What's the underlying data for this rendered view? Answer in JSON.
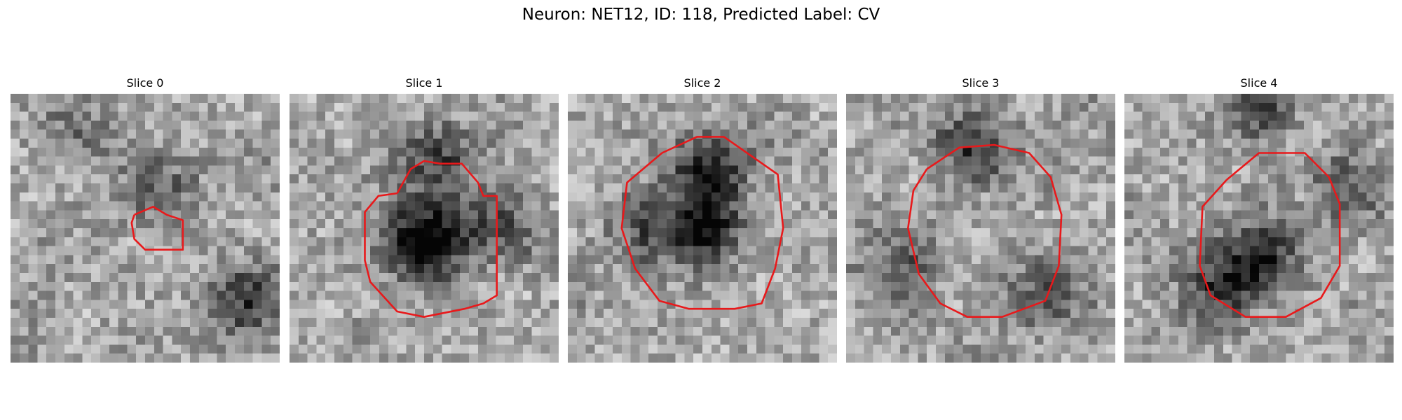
{
  "figure": {
    "title": "Neuron: NET12, ID: 118, Predicted Label: CV"
  },
  "contour_color": "#e8191b",
  "panels": [
    {
      "title": "Slice 0",
      "seed": 11,
      "dark_spots": [
        [
          0.55,
          0.35,
          0.28
        ],
        [
          0.88,
          0.78,
          0.45
        ],
        [
          0.25,
          0.12,
          0.2
        ]
      ],
      "contour": [
        [
          0.46,
          0.45
        ],
        [
          0.53,
          0.42
        ],
        [
          0.58,
          0.45
        ],
        [
          0.64,
          0.47
        ],
        [
          0.64,
          0.58
        ],
        [
          0.62,
          0.58
        ],
        [
          0.5,
          0.58
        ],
        [
          0.46,
          0.54
        ],
        [
          0.45,
          0.48
        ]
      ]
    },
    {
      "title": "Slice 1",
      "seed": 23,
      "dark_spots": [
        [
          0.5,
          0.55,
          0.85
        ],
        [
          0.55,
          0.25,
          0.4
        ],
        [
          0.78,
          0.5,
          0.3
        ]
      ],
      "contour": [
        [
          0.4,
          0.37
        ],
        [
          0.45,
          0.28
        ],
        [
          0.5,
          0.25
        ],
        [
          0.56,
          0.26
        ],
        [
          0.64,
          0.26
        ],
        [
          0.7,
          0.33
        ],
        [
          0.72,
          0.38
        ],
        [
          0.77,
          0.38
        ],
        [
          0.77,
          0.75
        ],
        [
          0.72,
          0.78
        ],
        [
          0.65,
          0.8
        ],
        [
          0.5,
          0.83
        ],
        [
          0.4,
          0.81
        ],
        [
          0.3,
          0.7
        ],
        [
          0.28,
          0.62
        ],
        [
          0.28,
          0.44
        ],
        [
          0.33,
          0.38
        ]
      ]
    },
    {
      "title": "Slice 2",
      "seed": 37,
      "dark_spots": [
        [
          0.5,
          0.5,
          0.55
        ],
        [
          0.52,
          0.28,
          0.5
        ],
        [
          0.3,
          0.5,
          0.35
        ]
      ],
      "contour": [
        [
          0.35,
          0.22
        ],
        [
          0.48,
          0.16
        ],
        [
          0.58,
          0.16
        ],
        [
          0.68,
          0.23
        ],
        [
          0.78,
          0.3
        ],
        [
          0.8,
          0.5
        ],
        [
          0.77,
          0.65
        ],
        [
          0.72,
          0.78
        ],
        [
          0.62,
          0.8
        ],
        [
          0.45,
          0.8
        ],
        [
          0.34,
          0.77
        ],
        [
          0.25,
          0.65
        ],
        [
          0.2,
          0.5
        ],
        [
          0.22,
          0.33
        ]
      ]
    },
    {
      "title": "Slice 3",
      "seed": 49,
      "dark_spots": [
        [
          0.48,
          0.2,
          0.45
        ],
        [
          0.2,
          0.65,
          0.35
        ],
        [
          0.75,
          0.75,
          0.3
        ]
      ],
      "contour": [
        [
          0.3,
          0.28
        ],
        [
          0.42,
          0.2
        ],
        [
          0.55,
          0.19
        ],
        [
          0.68,
          0.22
        ],
        [
          0.76,
          0.31
        ],
        [
          0.8,
          0.45
        ],
        [
          0.79,
          0.64
        ],
        [
          0.74,
          0.77
        ],
        [
          0.58,
          0.83
        ],
        [
          0.45,
          0.83
        ],
        [
          0.35,
          0.78
        ],
        [
          0.27,
          0.67
        ],
        [
          0.23,
          0.5
        ],
        [
          0.25,
          0.36
        ]
      ]
    },
    {
      "title": "Slice 4",
      "seed": 61,
      "dark_spots": [
        [
          0.52,
          0.6,
          0.5
        ],
        [
          0.35,
          0.72,
          0.45
        ],
        [
          0.5,
          0.05,
          0.4
        ],
        [
          0.82,
          0.35,
          0.3
        ]
      ],
      "contour": [
        [
          0.38,
          0.32
        ],
        [
          0.5,
          0.22
        ],
        [
          0.67,
          0.22
        ],
        [
          0.76,
          0.31
        ],
        [
          0.8,
          0.41
        ],
        [
          0.8,
          0.64
        ],
        [
          0.73,
          0.76
        ],
        [
          0.6,
          0.83
        ],
        [
          0.45,
          0.83
        ],
        [
          0.32,
          0.75
        ],
        [
          0.28,
          0.64
        ],
        [
          0.29,
          0.42
        ]
      ]
    }
  ]
}
